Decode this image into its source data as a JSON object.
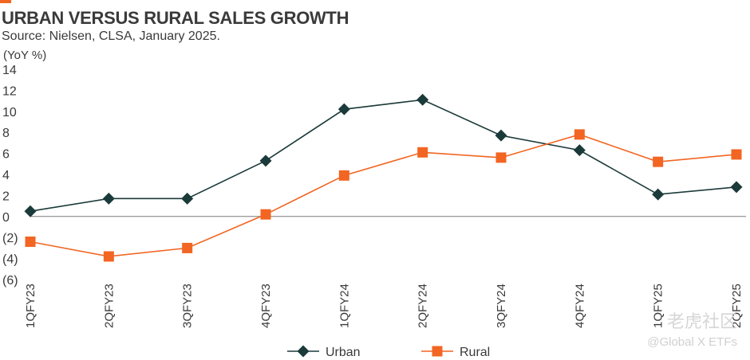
{
  "colors": {
    "urban": "#1b3a3a",
    "rural": "#f26522",
    "accent": "#f26522"
  },
  "chart_data": {
    "type": "line",
    "title": "URBAN VERSUS RURAL SALES GROWTH",
    "subtitle": "Source: Nielsen, CLSA, January 2025.",
    "ylabel": "(YoY %)",
    "ylim": [
      -6,
      14
    ],
    "yticks": [
      {
        "value": 14,
        "label": "14"
      },
      {
        "value": 12,
        "label": "12"
      },
      {
        "value": 10,
        "label": "10"
      },
      {
        "value": 8,
        "label": "8"
      },
      {
        "value": 6,
        "label": "6"
      },
      {
        "value": 4,
        "label": "4"
      },
      {
        "value": 2,
        "label": "2"
      },
      {
        "value": 0,
        "label": "0"
      },
      {
        "value": -2,
        "label": "(2)"
      },
      {
        "value": -4,
        "label": "(4)"
      },
      {
        "value": -6,
        "label": "(6)"
      }
    ],
    "categories": [
      "1QFY23",
      "2QFY23",
      "3QFY23",
      "4QFY23",
      "1QFY24",
      "2QFY24",
      "3QFY24",
      "4QFY24",
      "1QFY25",
      "2QFY25"
    ],
    "series": [
      {
        "name": "Urban",
        "marker": "diamond",
        "values": [
          0.5,
          1.7,
          1.7,
          5.3,
          10.2,
          11.1,
          7.7,
          6.3,
          2.1,
          2.8
        ]
      },
      {
        "name": "Rural",
        "marker": "square",
        "values": [
          -2.4,
          -3.8,
          -3.0,
          0.2,
          3.9,
          6.1,
          5.6,
          7.8,
          5.2,
          5.9
        ]
      }
    ],
    "legend_position": "bottom-center"
  },
  "watermark": {
    "text": "老虎社区",
    "handle": "@Global X ETFs"
  }
}
